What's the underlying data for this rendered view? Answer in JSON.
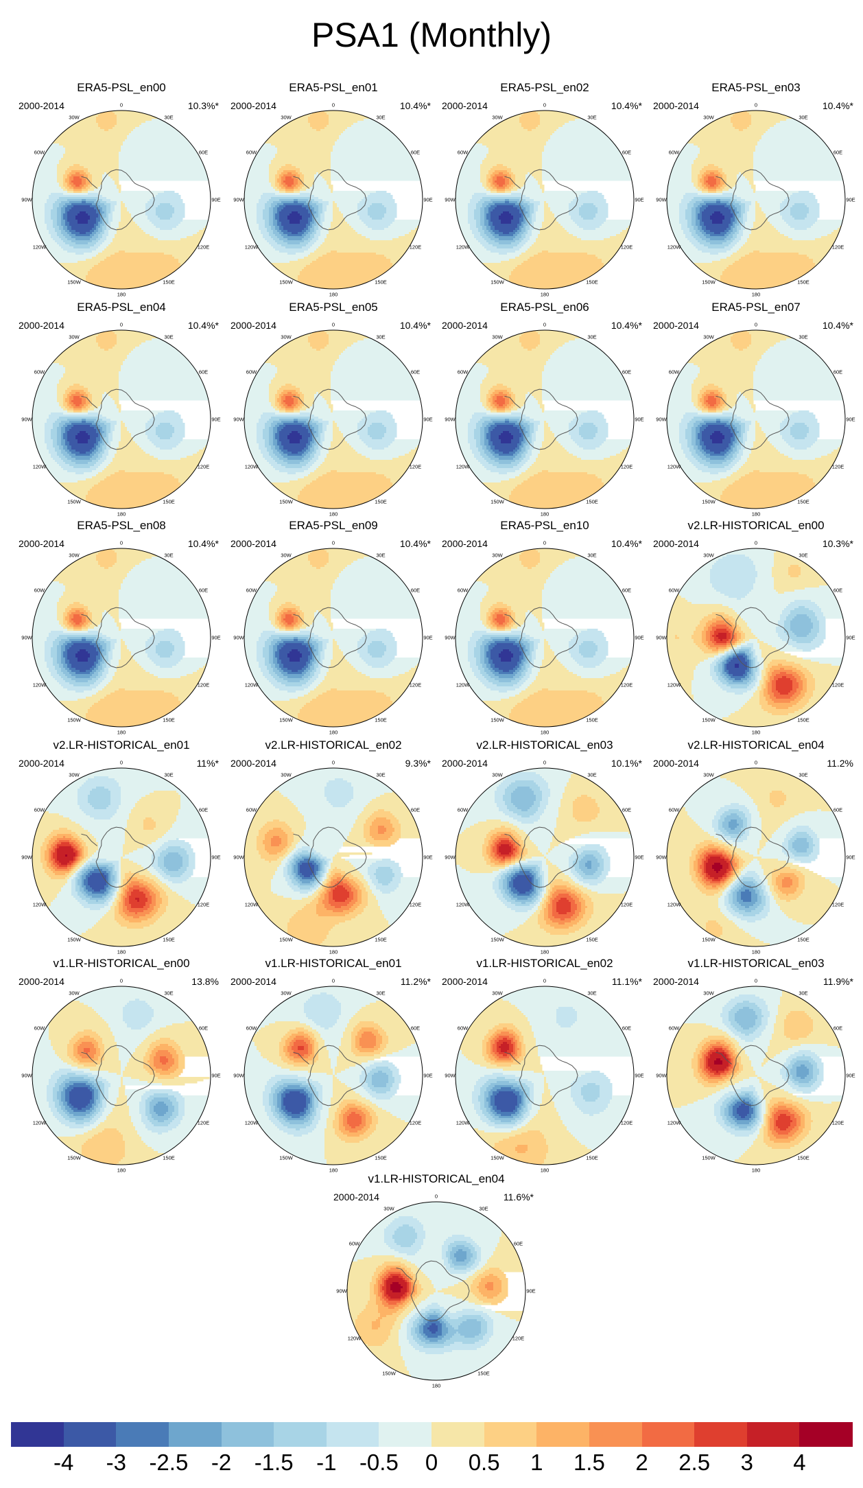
{
  "title": "PSA1 (Monthly)",
  "period": "2000-2014",
  "lon_labels": [
    "0",
    "30E",
    "60E",
    "90E",
    "120E",
    "150E",
    "180",
    "150W",
    "120W",
    "90W",
    "60W",
    "30W"
  ],
  "panels": [
    {
      "name": "ERA5-PSL_en00",
      "pct": "10.3%*",
      "pattern": "era5"
    },
    {
      "name": "ERA5-PSL_en01",
      "pct": "10.4%*",
      "pattern": "era5"
    },
    {
      "name": "ERA5-PSL_en02",
      "pct": "10.4%*",
      "pattern": "era5"
    },
    {
      "name": "ERA5-PSL_en03",
      "pct": "10.4%*",
      "pattern": "era5"
    },
    {
      "name": "ERA5-PSL_en04",
      "pct": "10.4%*",
      "pattern": "era5"
    },
    {
      "name": "ERA5-PSL_en05",
      "pct": "10.4%*",
      "pattern": "era5"
    },
    {
      "name": "ERA5-PSL_en06",
      "pct": "10.4%*",
      "pattern": "era5"
    },
    {
      "name": "ERA5-PSL_en07",
      "pct": "10.4%*",
      "pattern": "era5"
    },
    {
      "name": "ERA5-PSL_en08",
      "pct": "10.4%*",
      "pattern": "era5"
    },
    {
      "name": "ERA5-PSL_en09",
      "pct": "10.4%*",
      "pattern": "era5"
    },
    {
      "name": "ERA5-PSL_en10",
      "pct": "10.4%*",
      "pattern": "era5"
    },
    {
      "name": "v2.LR-HISTORICAL_en00",
      "pct": "10.3%*",
      "pattern": "v2_en00"
    },
    {
      "name": "v2.LR-HISTORICAL_en01",
      "pct": "11%*",
      "pattern": "v2_en01"
    },
    {
      "name": "v2.LR-HISTORICAL_en02",
      "pct": "9.3%*",
      "pattern": "v2_en02"
    },
    {
      "name": "v2.LR-HISTORICAL_en03",
      "pct": "10.1%*",
      "pattern": "v2_en03"
    },
    {
      "name": "v2.LR-HISTORICAL_en04",
      "pct": "11.2%",
      "pattern": "v2_en04"
    },
    {
      "name": "v1.LR-HISTORICAL_en00",
      "pct": "13.8%",
      "pattern": "v1_en00"
    },
    {
      "name": "v1.LR-HISTORICAL_en01",
      "pct": "11.2%*",
      "pattern": "v1_en01"
    },
    {
      "name": "v1.LR-HISTORICAL_en02",
      "pct": "11.1%*",
      "pattern": "v1_en02"
    },
    {
      "name": "v1.LR-HISTORICAL_en03",
      "pct": "11.9%*",
      "pattern": "v1_en03"
    },
    {
      "name": "v1.LR-HISTORICAL_en04",
      "pct": "11.6%*",
      "pattern": "v1_en04"
    }
  ],
  "colorbar": {
    "ticks": [
      "-4",
      "-3",
      "-2.5",
      "-2",
      "-1.5",
      "-1",
      "-0.5",
      "0",
      "0.5",
      "1",
      "1.5",
      "2",
      "2.5",
      "3",
      "4"
    ],
    "colors": [
      "#313695",
      "#3c59a6",
      "#4a7bb7",
      "#6ea6cd",
      "#8ec1dc",
      "#a8d4e6",
      "#c5e4ef",
      "#e0f2f0",
      "#f6e6a8",
      "#fdd084",
      "#fdb366",
      "#f99153",
      "#f26b43",
      "#df3f2f",
      "#c62027",
      "#a50026"
    ]
  },
  "patterns": {
    "era5": [
      {
        "lon": -115,
        "r": 0.48,
        "w": 0.2,
        "v": -4.3
      },
      {
        "lon": -70,
        "r": 0.53,
        "w": 0.11,
        "v": 3.0
      },
      {
        "lon": 105,
        "r": 0.5,
        "w": 0.17,
        "v": -1.2
      },
      {
        "lon": -170,
        "r": 0.8,
        "w": 0.26,
        "v": 0.9
      },
      {
        "lon": 20,
        "r": 0.62,
        "w": 0.15,
        "v": -0.4
      },
      {
        "lon": 150,
        "r": 0.9,
        "w": 0.25,
        "v": 0.7
      },
      {
        "lon": -10,
        "r": 0.9,
        "w": 0.2,
        "v": 0.6
      }
    ],
    "v2_en00": [
      {
        "lon": -90,
        "r": 0.38,
        "w": 0.14,
        "v": 3.4
      },
      {
        "lon": -145,
        "r": 0.38,
        "w": 0.15,
        "v": -4.2
      },
      {
        "lon": 150,
        "r": 0.62,
        "w": 0.17,
        "v": 3.0
      },
      {
        "lon": 75,
        "r": 0.52,
        "w": 0.17,
        "v": -2.0
      },
      {
        "lon": -20,
        "r": 0.72,
        "w": 0.22,
        "v": -1.0
      },
      {
        "lon": 30,
        "r": 0.85,
        "w": 0.15,
        "v": 0.6
      },
      {
        "lon": -90,
        "r": 0.9,
        "w": 0.2,
        "v": 0.5
      }
    ],
    "v2_en01": [
      {
        "lon": -88,
        "r": 0.62,
        "w": 0.14,
        "v": 4.2
      },
      {
        "lon": -135,
        "r": 0.38,
        "w": 0.16,
        "v": -3.8
      },
      {
        "lon": 160,
        "r": 0.5,
        "w": 0.17,
        "v": 3.1
      },
      {
        "lon": 95,
        "r": 0.58,
        "w": 0.15,
        "v": -2.0
      },
      {
        "lon": -20,
        "r": 0.7,
        "w": 0.18,
        "v": -1.3
      },
      {
        "lon": 40,
        "r": 0.48,
        "w": 0.12,
        "v": 0.6
      }
    ],
    "v2_en02": [
      {
        "lon": -115,
        "r": 0.32,
        "w": 0.14,
        "v": -3.6
      },
      {
        "lon": 170,
        "r": 0.42,
        "w": 0.16,
        "v": 3.0
      },
      {
        "lon": -75,
        "r": 0.65,
        "w": 0.15,
        "v": 1.7
      },
      {
        "lon": 60,
        "r": 0.62,
        "w": 0.14,
        "v": 1.6
      },
      {
        "lon": 110,
        "r": 0.6,
        "w": 0.14,
        "v": -1.4
      },
      {
        "lon": 5,
        "r": 0.72,
        "w": 0.2,
        "v": -0.7
      },
      {
        "lon": -160,
        "r": 0.85,
        "w": 0.2,
        "v": 0.9
      }
    ],
    "v2_en03": [
      {
        "lon": -80,
        "r": 0.45,
        "w": 0.13,
        "v": 3.6
      },
      {
        "lon": -140,
        "r": 0.38,
        "w": 0.16,
        "v": -3.8
      },
      {
        "lon": 160,
        "r": 0.58,
        "w": 0.17,
        "v": 3.0
      },
      {
        "lon": 100,
        "r": 0.5,
        "w": 0.14,
        "v": -2.1
      },
      {
        "lon": -20,
        "r": 0.7,
        "w": 0.18,
        "v": -2.0
      },
      {
        "lon": 40,
        "r": 0.7,
        "w": 0.14,
        "v": 0.9
      }
    ],
    "v2_en04": [
      {
        "lon": -105,
        "r": 0.45,
        "w": 0.15,
        "v": 4.3
      },
      {
        "lon": -165,
        "r": 0.45,
        "w": 0.16,
        "v": -2.8
      },
      {
        "lon": -35,
        "r": 0.45,
        "w": 0.13,
        "v": -2.2
      },
      {
        "lon": 75,
        "r": 0.52,
        "w": 0.13,
        "v": -1.9
      },
      {
        "lon": 130,
        "r": 0.45,
        "w": 0.13,
        "v": 1.7
      },
      {
        "lon": 20,
        "r": 0.7,
        "w": 0.16,
        "v": 0.6
      },
      {
        "lon": -150,
        "r": 0.9,
        "w": 0.2,
        "v": 0.6
      }
    ],
    "v1_en00": [
      {
        "lon": -118,
        "r": 0.52,
        "w": 0.18,
        "v": -3.9
      },
      {
        "lon": -55,
        "r": 0.48,
        "w": 0.13,
        "v": 2.1
      },
      {
        "lon": 70,
        "r": 0.5,
        "w": 0.14,
        "v": 2.1
      },
      {
        "lon": 130,
        "r": 0.58,
        "w": 0.15,
        "v": -2.3
      },
      {
        "lon": 15,
        "r": 0.7,
        "w": 0.16,
        "v": -0.9
      },
      {
        "lon": -165,
        "r": 0.8,
        "w": 0.22,
        "v": 1.0
      }
    ],
    "v1_en01": [
      {
        "lon": -125,
        "r": 0.52,
        "w": 0.17,
        "v": -4.0
      },
      {
        "lon": -50,
        "r": 0.48,
        "w": 0.13,
        "v": 2.6
      },
      {
        "lon": 45,
        "r": 0.55,
        "w": 0.13,
        "v": 2.0
      },
      {
        "lon": 95,
        "r": 0.52,
        "w": 0.14,
        "v": -1.9
      },
      {
        "lon": 155,
        "r": 0.55,
        "w": 0.14,
        "v": 2.4
      },
      {
        "lon": -10,
        "r": 0.72,
        "w": 0.18,
        "v": -1.0
      }
    ],
    "v1_en02": [
      {
        "lon": -55,
        "r": 0.55,
        "w": 0.13,
        "v": 3.3
      },
      {
        "lon": -125,
        "r": 0.52,
        "w": 0.18,
        "v": -4.0
      },
      {
        "lon": 110,
        "r": 0.55,
        "w": 0.18,
        "v": -1.2
      },
      {
        "lon": -160,
        "r": 0.8,
        "w": 0.24,
        "v": 1.2
      },
      {
        "lon": 20,
        "r": 0.7,
        "w": 0.2,
        "v": -0.6
      }
    ],
    "v1_en03": [
      {
        "lon": -70,
        "r": 0.45,
        "w": 0.14,
        "v": 4.2
      },
      {
        "lon": -160,
        "r": 0.42,
        "w": 0.15,
        "v": -3.4
      },
      {
        "lon": 150,
        "r": 0.6,
        "w": 0.16,
        "v": 3.0
      },
      {
        "lon": 85,
        "r": 0.52,
        "w": 0.14,
        "v": -2.3
      },
      {
        "lon": -10,
        "r": 0.65,
        "w": 0.16,
        "v": -2.0
      },
      {
        "lon": 40,
        "r": 0.72,
        "w": 0.15,
        "v": 1.0
      }
    ],
    "v1_en04": [
      {
        "lon": -85,
        "r": 0.45,
        "w": 0.14,
        "v": 4.4
      },
      {
        "lon": -175,
        "r": 0.42,
        "w": 0.15,
        "v": -3.2
      },
      {
        "lon": 35,
        "r": 0.48,
        "w": 0.13,
        "v": -2.3
      },
      {
        "lon": 85,
        "r": 0.6,
        "w": 0.14,
        "v": 1.6
      },
      {
        "lon": 135,
        "r": 0.58,
        "w": 0.14,
        "v": -1.9
      },
      {
        "lon": -30,
        "r": 0.7,
        "w": 0.16,
        "v": -1.4
      },
      {
        "lon": -120,
        "r": 0.8,
        "w": 0.18,
        "v": 1.0
      }
    ]
  }
}
